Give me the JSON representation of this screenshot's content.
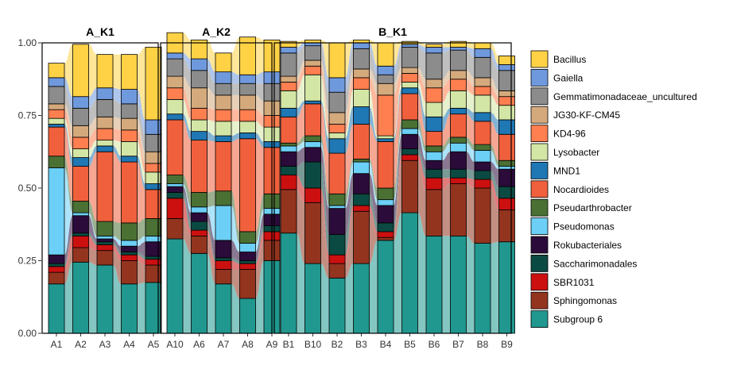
{
  "chart_data": {
    "type": "bar",
    "stacked": true,
    "title": "",
    "xlabel": "",
    "ylabel": "",
    "ylim": [
      0,
      1
    ],
    "yticks": [
      "0.00",
      "0.25",
      "0.50",
      "0.75",
      "1.00"
    ],
    "legend_position": "right",
    "taxa": [
      "Subgroup 6",
      "Sphingomonas",
      "SBR1031",
      "Saccharimonadales",
      "Rokubacteriales",
      "Pseudomonas",
      "Pseudarthrobacter",
      "Nocardioides",
      "MND1",
      "Lysobacter",
      "KD4-96",
      "JG30-KF-CM45",
      "Gemmatimonadaceae_uncultured",
      "Gaiella",
      "Bacillus"
    ],
    "legend_order": [
      "Bacillus",
      "Gaiella",
      "Gemmatimonadaceae_uncultured",
      "JG30-KF-CM45",
      "KD4-96",
      "Lysobacter",
      "MND1",
      "Nocardioides",
      "Pseudarthrobacter",
      "Pseudomonas",
      "Rokubacteriales",
      "Saccharimonadales",
      "SBR1031",
      "Sphingomonas",
      "Subgroup 6"
    ],
    "colors": {
      "Bacillus": "#FFD246",
      "Gaiella": "#6F99DD",
      "Gemmatimonadaceae_uncultured": "#8C8C8C",
      "JG30-KF-CM45": "#D4AA7D",
      "KD4-96": "#FF7F50",
      "Lysobacter": "#D4E6A5",
      "MND1": "#1F77B4",
      "Nocardioides": "#F0603C",
      "Pseudarthrobacter": "#4A7034",
      "Pseudomonas": "#6CCFF6",
      "Rokubacteriales": "#2B0B3A",
      "Saccharimonadales": "#0B4A42",
      "SBR1031": "#CC1010",
      "Sphingomonas": "#93341F",
      "Subgroup 6": "#20988F"
    },
    "facets": [
      {
        "name": "A_K1",
        "samples": [
          {
            "label": "A1",
            "values": [
              0.17,
              0.04,
              0.02,
              0.01,
              0.03,
              0.3,
              0.04,
              0.1,
              0.01,
              0.02,
              0.03,
              0.02,
              0.06,
              0.03,
              0.05
            ]
          },
          {
            "label": "A2",
            "values": [
              0.245,
              0.05,
              0.04,
              0.01,
              0.06,
              0.01,
              0.04,
              0.12,
              0.03,
              0.03,
              0.04,
              0.04,
              0.06,
              0.04,
              0.18
            ]
          },
          {
            "label": "A3",
            "values": [
              0.235,
              0.05,
              0.02,
              0.01,
              0.01,
              0.01,
              0.05,
              0.24,
              0.02,
              0.02,
              0.04,
              0.04,
              0.06,
              0.04,
              0.115
            ]
          },
          {
            "label": "A4",
            "values": [
              0.17,
              0.08,
              0.02,
              0.01,
              0.02,
              0.02,
              0.06,
              0.21,
              0.02,
              0.05,
              0.04,
              0.04,
              0.05,
              0.05,
              0.12
            ]
          },
          {
            "label": "A5",
            "values": [
              0.175,
              0.06,
              0.02,
              0.01,
              0.05,
              0.02,
              0.06,
              0.1,
              0.02,
              0.04,
              0.03,
              0.04,
              0.06,
              0.05,
              0.25
            ]
          }
        ]
      },
      {
        "name": "A_K2",
        "samples": [
          {
            "label": "A10",
            "values": [
              0.325,
              0.07,
              0.07,
              0.02,
              0.02,
              0.01,
              0.03,
              0.19,
              0.02,
              0.05,
              0.04,
              0.04,
              0.06,
              0.02,
              0.07
            ]
          },
          {
            "label": "A6",
            "values": [
              0.275,
              0.06,
              0.02,
              0.03,
              0.03,
              0.02,
              0.05,
              0.18,
              0.03,
              0.04,
              0.04,
              0.07,
              0.06,
              0.04,
              0.065
            ]
          },
          {
            "label": "A7",
            "values": [
              0.17,
              0.05,
              0.03,
              0.01,
              0.06,
              0.12,
              0.05,
              0.17,
              0.02,
              0.05,
              0.04,
              0.05,
              0.04,
              0.04,
              0.065
            ]
          },
          {
            "label": "A8",
            "values": [
              0.12,
              0.1,
              0.02,
              0.01,
              0.03,
              0.03,
              0.04,
              0.32,
              0.02,
              0.04,
              0.04,
              0.05,
              0.04,
              0.03,
              0.13
            ]
          },
          {
            "label": "A9",
            "values": [
              0.25,
              0.07,
              0.03,
              0.02,
              0.04,
              0.02,
              0.05,
              0.16,
              0.02,
              0.05,
              0.04,
              0.05,
              0.06,
              0.04,
              0.11
            ]
          }
        ]
      },
      {
        "name": "B_K1",
        "samples": [
          {
            "label": "B1",
            "values": [
              0.345,
              0.15,
              0.05,
              0.03,
              0.05,
              0.02,
              0.01,
              0.09,
              0.03,
              0.06,
              0.03,
              0.02,
              0.08,
              0.02,
              0.02
            ]
          },
          {
            "label": "B10",
            "values": [
              0.24,
              0.21,
              0.05,
              0.09,
              0.05,
              0.02,
              0.02,
              0.11,
              0.01,
              0.09,
              0.03,
              0.02,
              0.05,
              0.01,
              0.01
            ]
          },
          {
            "label": "B2",
            "values": [
              0.19,
              0.05,
              0.03,
              0.07,
              0.09,
              0.01,
              0.04,
              0.14,
              0.05,
              0.02,
              0.03,
              0.04,
              0.07,
              0.05,
              0.12
            ]
          },
          {
            "label": "B3",
            "values": [
              0.24,
              0.18,
              0.02,
              0.04,
              0.07,
              0.04,
              0.01,
              0.12,
              0.06,
              0.06,
              0.04,
              0.03,
              0.07,
              0.02,
              0.01
            ]
          },
          {
            "label": "B4",
            "values": [
              0.32,
              0.01,
              0.02,
              0.03,
              0.06,
              0.02,
              0.04,
              0.16,
              0.01,
              0.01,
              0.14,
              0.04,
              0.03,
              0.03,
              0.08
            ]
          },
          {
            "label": "B5",
            "values": [
              0.415,
              0.18,
              0.02,
              0.02,
              0.05,
              0.02,
              0.03,
              0.09,
              0.02,
              0.02,
              0.03,
              0.02,
              0.07,
              0.01,
              0.01
            ]
          },
          {
            "label": "B6",
            "values": [
              0.335,
              0.16,
              0.04,
              0.03,
              0.03,
              0.03,
              0.02,
              0.05,
              0.05,
              0.05,
              0.05,
              0.03,
              0.09,
              0.02,
              0.01
            ]
          },
          {
            "label": "B7",
            "values": [
              0.335,
              0.18,
              0.02,
              0.03,
              0.06,
              0.03,
              0.02,
              0.08,
              0.02,
              0.06,
              0.04,
              0.03,
              0.07,
              0.01,
              0.02
            ]
          },
          {
            "label": "B8",
            "values": [
              0.31,
              0.19,
              0.03,
              0.03,
              0.03,
              0.04,
              0.02,
              0.08,
              0.03,
              0.06,
              0.03,
              0.03,
              0.07,
              0.03,
              0.02
            ]
          },
          {
            "label": "B9",
            "values": [
              0.315,
              0.11,
              0.04,
              0.04,
              0.06,
              0.01,
              0.02,
              0.09,
              0.05,
              0.05,
              0.03,
              0.02,
              0.07,
              0.02,
              0.03
            ]
          }
        ]
      }
    ]
  }
}
